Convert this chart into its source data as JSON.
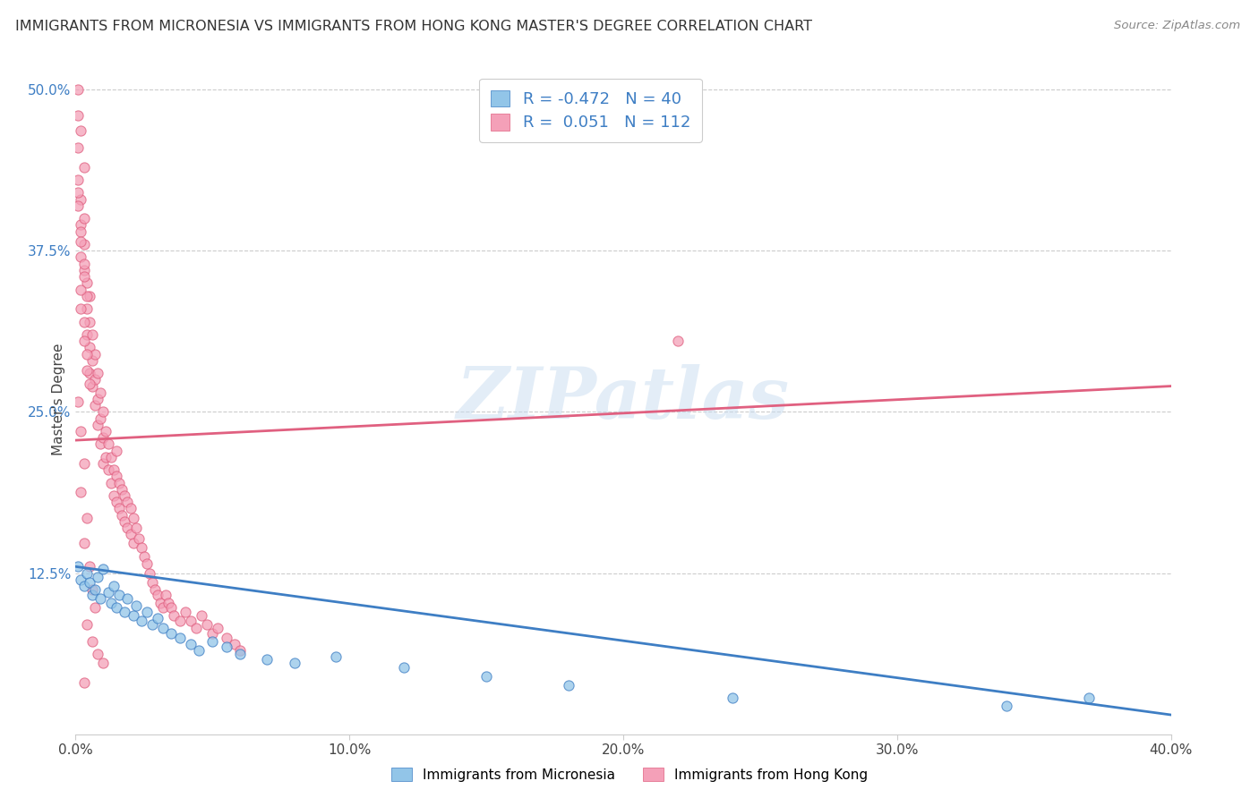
{
  "title": "IMMIGRANTS FROM MICRONESIA VS IMMIGRANTS FROM HONG KONG MASTER'S DEGREE CORRELATION CHART",
  "source": "Source: ZipAtlas.com",
  "ylabel": "Master's Degree",
  "xlim": [
    0.0,
    0.4
  ],
  "ylim": [
    0.0,
    0.52
  ],
  "xtick_labels": [
    "0.0%",
    "10.0%",
    "20.0%",
    "30.0%",
    "40.0%"
  ],
  "xtick_vals": [
    0.0,
    0.1,
    0.2,
    0.3,
    0.4
  ],
  "ytick_labels": [
    "12.5%",
    "25.0%",
    "37.5%",
    "50.0%"
  ],
  "ytick_vals": [
    0.125,
    0.25,
    0.375,
    0.5
  ],
  "blue_color": "#92C5E8",
  "pink_color": "#F4A0B8",
  "blue_line_color": "#3E7EC4",
  "pink_line_color": "#E06080",
  "R_blue": -0.472,
  "N_blue": 40,
  "R_pink": 0.051,
  "N_pink": 112,
  "watermark": "ZIPatlas",
  "legend_label_blue": "Immigrants from Micronesia",
  "legend_label_pink": "Immigrants from Hong Kong",
  "blue_scatter_x": [
    0.001,
    0.002,
    0.003,
    0.004,
    0.005,
    0.006,
    0.007,
    0.008,
    0.009,
    0.01,
    0.012,
    0.013,
    0.014,
    0.015,
    0.016,
    0.018,
    0.019,
    0.021,
    0.022,
    0.024,
    0.026,
    0.028,
    0.03,
    0.032,
    0.035,
    0.038,
    0.042,
    0.045,
    0.05,
    0.055,
    0.06,
    0.07,
    0.08,
    0.095,
    0.12,
    0.15,
    0.18,
    0.24,
    0.34,
    0.37
  ],
  "blue_scatter_y": [
    0.13,
    0.12,
    0.115,
    0.125,
    0.118,
    0.108,
    0.112,
    0.122,
    0.105,
    0.128,
    0.11,
    0.102,
    0.115,
    0.098,
    0.108,
    0.095,
    0.105,
    0.092,
    0.1,
    0.088,
    0.095,
    0.085,
    0.09,
    0.082,
    0.078,
    0.075,
    0.07,
    0.065,
    0.072,
    0.068,
    0.062,
    0.058,
    0.055,
    0.06,
    0.052,
    0.045,
    0.038,
    0.028,
    0.022,
    0.028
  ],
  "pink_scatter_x": [
    0.001,
    0.001,
    0.001,
    0.002,
    0.002,
    0.002,
    0.003,
    0.003,
    0.003,
    0.004,
    0.004,
    0.004,
    0.005,
    0.005,
    0.005,
    0.005,
    0.006,
    0.006,
    0.006,
    0.007,
    0.007,
    0.007,
    0.008,
    0.008,
    0.008,
    0.009,
    0.009,
    0.009,
    0.01,
    0.01,
    0.01,
    0.011,
    0.011,
    0.012,
    0.012,
    0.013,
    0.013,
    0.014,
    0.014,
    0.015,
    0.015,
    0.015,
    0.016,
    0.016,
    0.017,
    0.017,
    0.018,
    0.018,
    0.019,
    0.019,
    0.02,
    0.02,
    0.021,
    0.021,
    0.022,
    0.023,
    0.024,
    0.025,
    0.026,
    0.027,
    0.028,
    0.029,
    0.03,
    0.031,
    0.032,
    0.033,
    0.034,
    0.035,
    0.036,
    0.038,
    0.04,
    0.042,
    0.044,
    0.046,
    0.048,
    0.05,
    0.052,
    0.055,
    0.058,
    0.06,
    0.001,
    0.002,
    0.003,
    0.001,
    0.002,
    0.003,
    0.004,
    0.002,
    0.003,
    0.004,
    0.005,
    0.001,
    0.002,
    0.003,
    0.002,
    0.003,
    0.004,
    0.001,
    0.002,
    0.003,
    0.002,
    0.004,
    0.003,
    0.005,
    0.006,
    0.007,
    0.004,
    0.006,
    0.008,
    0.01,
    0.003,
    0.22
  ],
  "pink_scatter_y": [
    0.48,
    0.455,
    0.43,
    0.415,
    0.395,
    0.37,
    0.4,
    0.38,
    0.36,
    0.35,
    0.33,
    0.31,
    0.34,
    0.32,
    0.3,
    0.28,
    0.31,
    0.29,
    0.27,
    0.295,
    0.275,
    0.255,
    0.28,
    0.26,
    0.24,
    0.265,
    0.245,
    0.225,
    0.25,
    0.23,
    0.21,
    0.235,
    0.215,
    0.225,
    0.205,
    0.215,
    0.195,
    0.205,
    0.185,
    0.2,
    0.18,
    0.22,
    0.195,
    0.175,
    0.19,
    0.17,
    0.185,
    0.165,
    0.18,
    0.16,
    0.175,
    0.155,
    0.168,
    0.148,
    0.16,
    0.152,
    0.145,
    0.138,
    0.132,
    0.125,
    0.118,
    0.112,
    0.108,
    0.102,
    0.098,
    0.108,
    0.102,
    0.098,
    0.092,
    0.088,
    0.095,
    0.088,
    0.082,
    0.092,
    0.085,
    0.078,
    0.082,
    0.075,
    0.07,
    0.065,
    0.5,
    0.468,
    0.44,
    0.42,
    0.39,
    0.365,
    0.34,
    0.345,
    0.32,
    0.295,
    0.272,
    0.41,
    0.382,
    0.355,
    0.33,
    0.305,
    0.282,
    0.258,
    0.235,
    0.21,
    0.188,
    0.168,
    0.148,
    0.13,
    0.112,
    0.098,
    0.085,
    0.072,
    0.062,
    0.055,
    0.04,
    0.305
  ]
}
